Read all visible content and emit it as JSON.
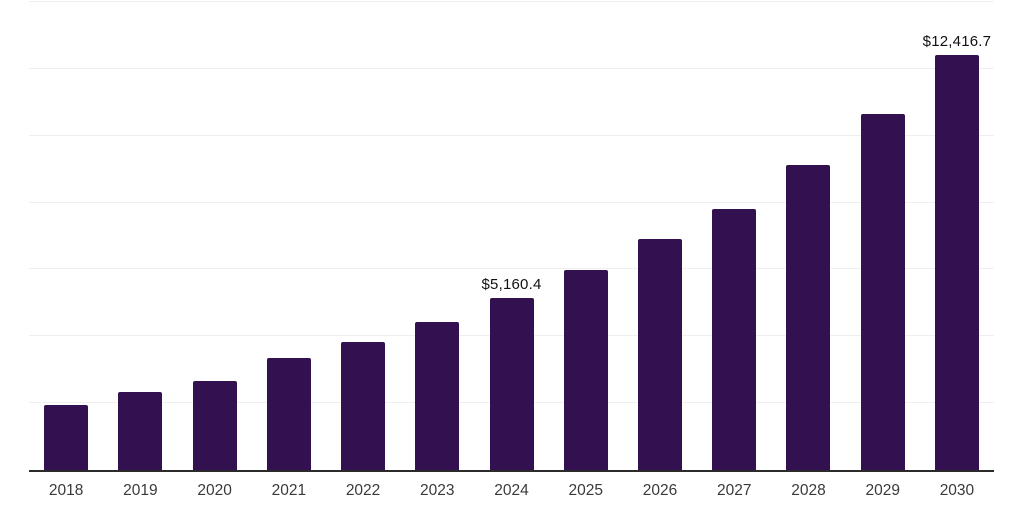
{
  "chart_data": {
    "type": "bar",
    "title": "",
    "xlabel": "",
    "ylabel": "",
    "categories": [
      "2018",
      "2019",
      "2020",
      "2021",
      "2022",
      "2023",
      "2024",
      "2025",
      "2026",
      "2027",
      "2028",
      "2029",
      "2030"
    ],
    "values": [
      1950,
      2320,
      2670,
      3340,
      3840,
      4440,
      5160.4,
      5970,
      6920,
      7820,
      9120,
      10650,
      12416.7
    ],
    "annotations": [
      {
        "category": "2024",
        "text": "$5,160.4"
      },
      {
        "category": "2030",
        "text": "$12,416.7"
      }
    ],
    "ylim": [
      0,
      14000
    ],
    "gridline_step": 2000,
    "grid": true,
    "legend": "none",
    "y_axis_labels_visible": false,
    "colors": {
      "bar": "#331150",
      "axis_line": "#2b2b2b",
      "gridline": "#efefef",
      "tick_label": "#3a3a3a",
      "value_label": "#111111",
      "background": "#ffffff"
    }
  }
}
